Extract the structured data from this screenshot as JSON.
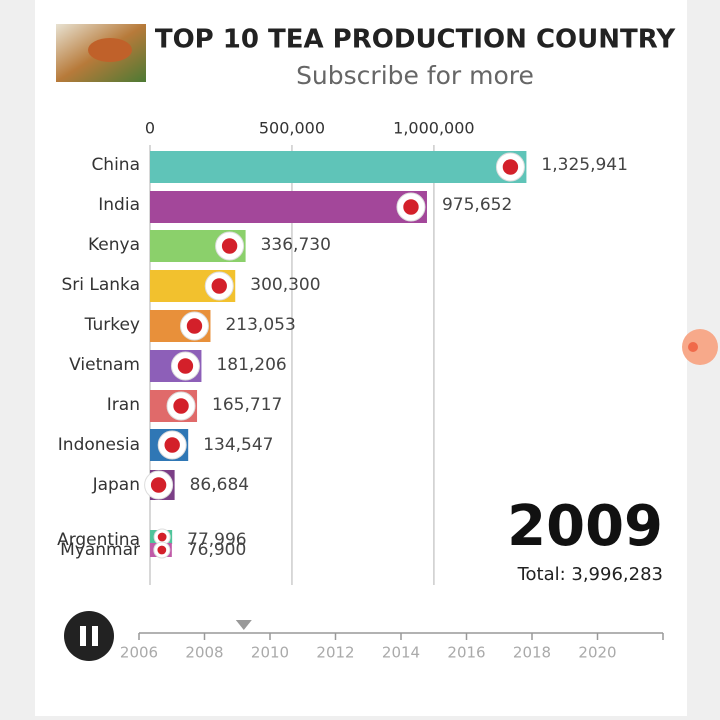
{
  "chart_data": {
    "type": "bar",
    "orientation": "horizontal",
    "title": "TOP 10 TEA PRODUCTION COUNTRY",
    "subtitle": "Subscribe for more",
    "categories": [
      "China",
      "India",
      "Kenya",
      "Sri Lanka",
      "Turkey",
      "Vietnam",
      "Iran",
      "Indonesia",
      "Japan",
      "Argentina",
      "Myanmar"
    ],
    "values": [
      1325941,
      975652,
      336730,
      300300,
      213053,
      181206,
      165717,
      134547,
      86684,
      77996,
      76900
    ],
    "value_labels": [
      "1,325,941",
      "975,652",
      "336,730",
      "300,300",
      "213,053",
      "181,206",
      "165,717",
      "134,547",
      "86,684",
      "77,996",
      "76,900"
    ],
    "colors": [
      "#5fc4b8",
      "#a3479a",
      "#8bd06b",
      "#f2c12e",
      "#e8903a",
      "#8d5fb8",
      "#e06a6a",
      "#2f77b5",
      "#7b3f86",
      "#4fc49a",
      "#c05aa8"
    ],
    "xlim": [
      0,
      1800000
    ],
    "xticks": [
      0,
      {
        "value": 500000,
        "label": "500,000"
      },
      {
        "value": 1000000,
        "label": "1,000,000"
      }
    ],
    "grid": true,
    "year": 2009,
    "total": "Total: 3,996,283",
    "timeline": {
      "lim": [
        2006,
        2022
      ],
      "ticks": [
        2006,
        2008,
        2010,
        2012,
        2014,
        2016,
        2018,
        2020
      ],
      "position": 2009.2
    }
  }
}
